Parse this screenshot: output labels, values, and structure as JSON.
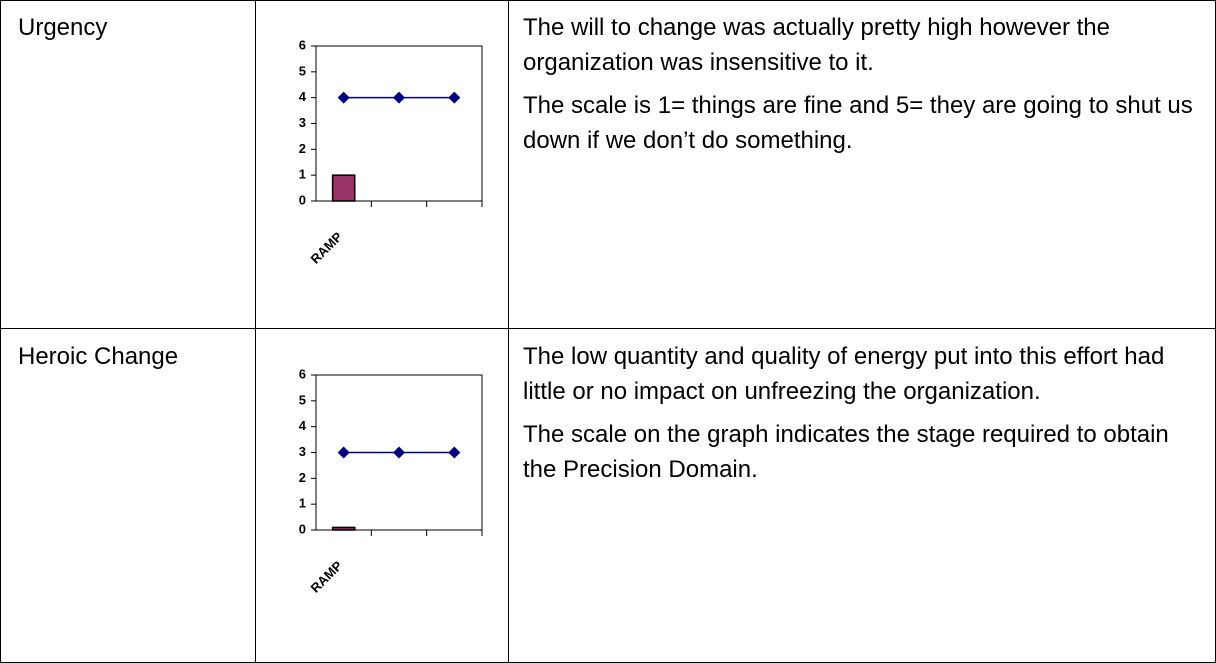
{
  "table": {
    "rows": [
      {
        "label": "Urgency",
        "chart": {
          "type": "combo",
          "categories": [
            "RAMP",
            null,
            null
          ],
          "series": [
            {
              "type": "bar",
              "color": "#993366",
              "values": [
                1,
                null,
                null
              ]
            },
            {
              "type": "line",
              "color": "#000080",
              "values": [
                4,
                4,
                4
              ]
            }
          ],
          "ylim": [
            0,
            6
          ],
          "yticks": [
            0,
            1,
            2,
            3,
            4,
            5,
            6
          ]
        },
        "text": [
          "The will to change was actually pretty high however the organization was insensitive to it.",
          "The scale is 1= things are fine and 5= they are going to shut us down if we don’t do something."
        ]
      },
      {
        "label": "Heroic Change",
        "chart": {
          "type": "combo",
          "categories": [
            "RAMP",
            null,
            null
          ],
          "series": [
            {
              "type": "bar",
              "color": "#993366",
              "values": [
                0.1,
                null,
                null
              ]
            },
            {
              "type": "line",
              "color": "#000080",
              "values": [
                3,
                3,
                3
              ]
            }
          ],
          "ylim": [
            0,
            6
          ],
          "yticks": [
            0,
            1,
            2,
            3,
            4,
            5,
            6
          ]
        },
        "text": [
          "The low quantity and quality of energy put into this effort had little or no impact on unfreezing the organization.",
          "The scale on the graph indicates the stage required to obtain the Precision Domain."
        ]
      }
    ]
  }
}
